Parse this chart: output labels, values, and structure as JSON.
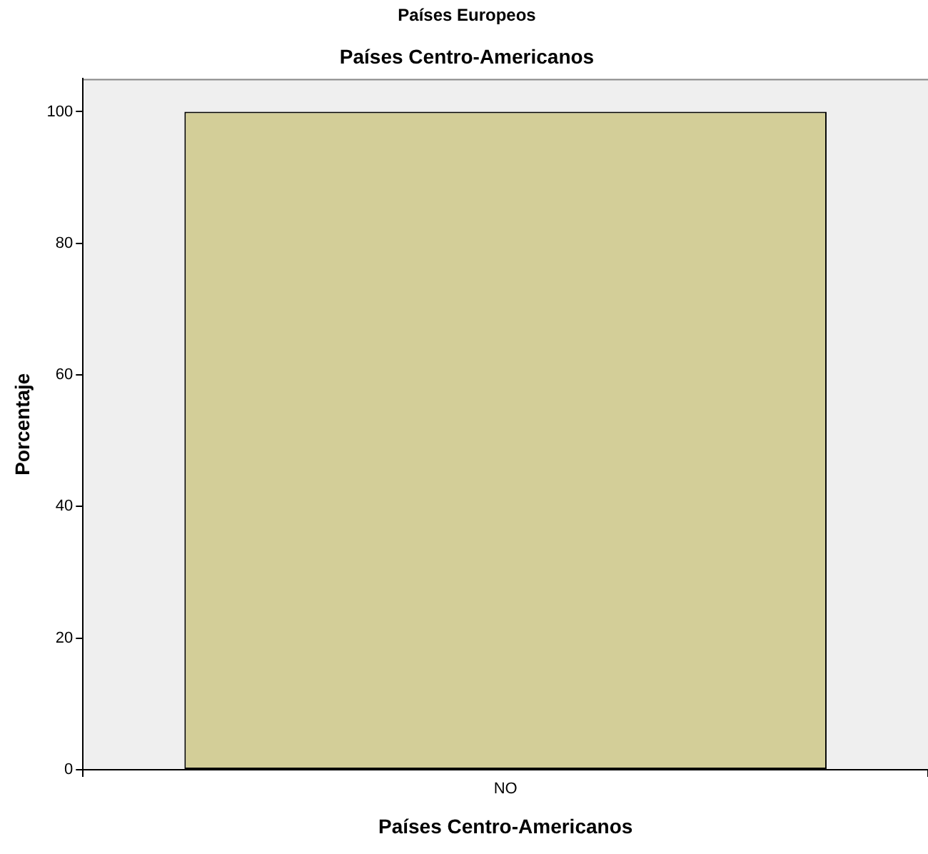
{
  "chart_data": {
    "type": "bar",
    "title": "Países Europeos",
    "subtitle": "Países Centro-Americanos",
    "xlabel": "Países Centro-Americanos",
    "ylabel": "Porcentaje",
    "categories": [
      "NO"
    ],
    "values": [
      100
    ],
    "color": "#d3ce98",
    "ylim": [
      0,
      105
    ],
    "yticks": [
      0,
      20,
      40,
      60,
      80,
      100
    ],
    "grid": false,
    "legend": false
  }
}
